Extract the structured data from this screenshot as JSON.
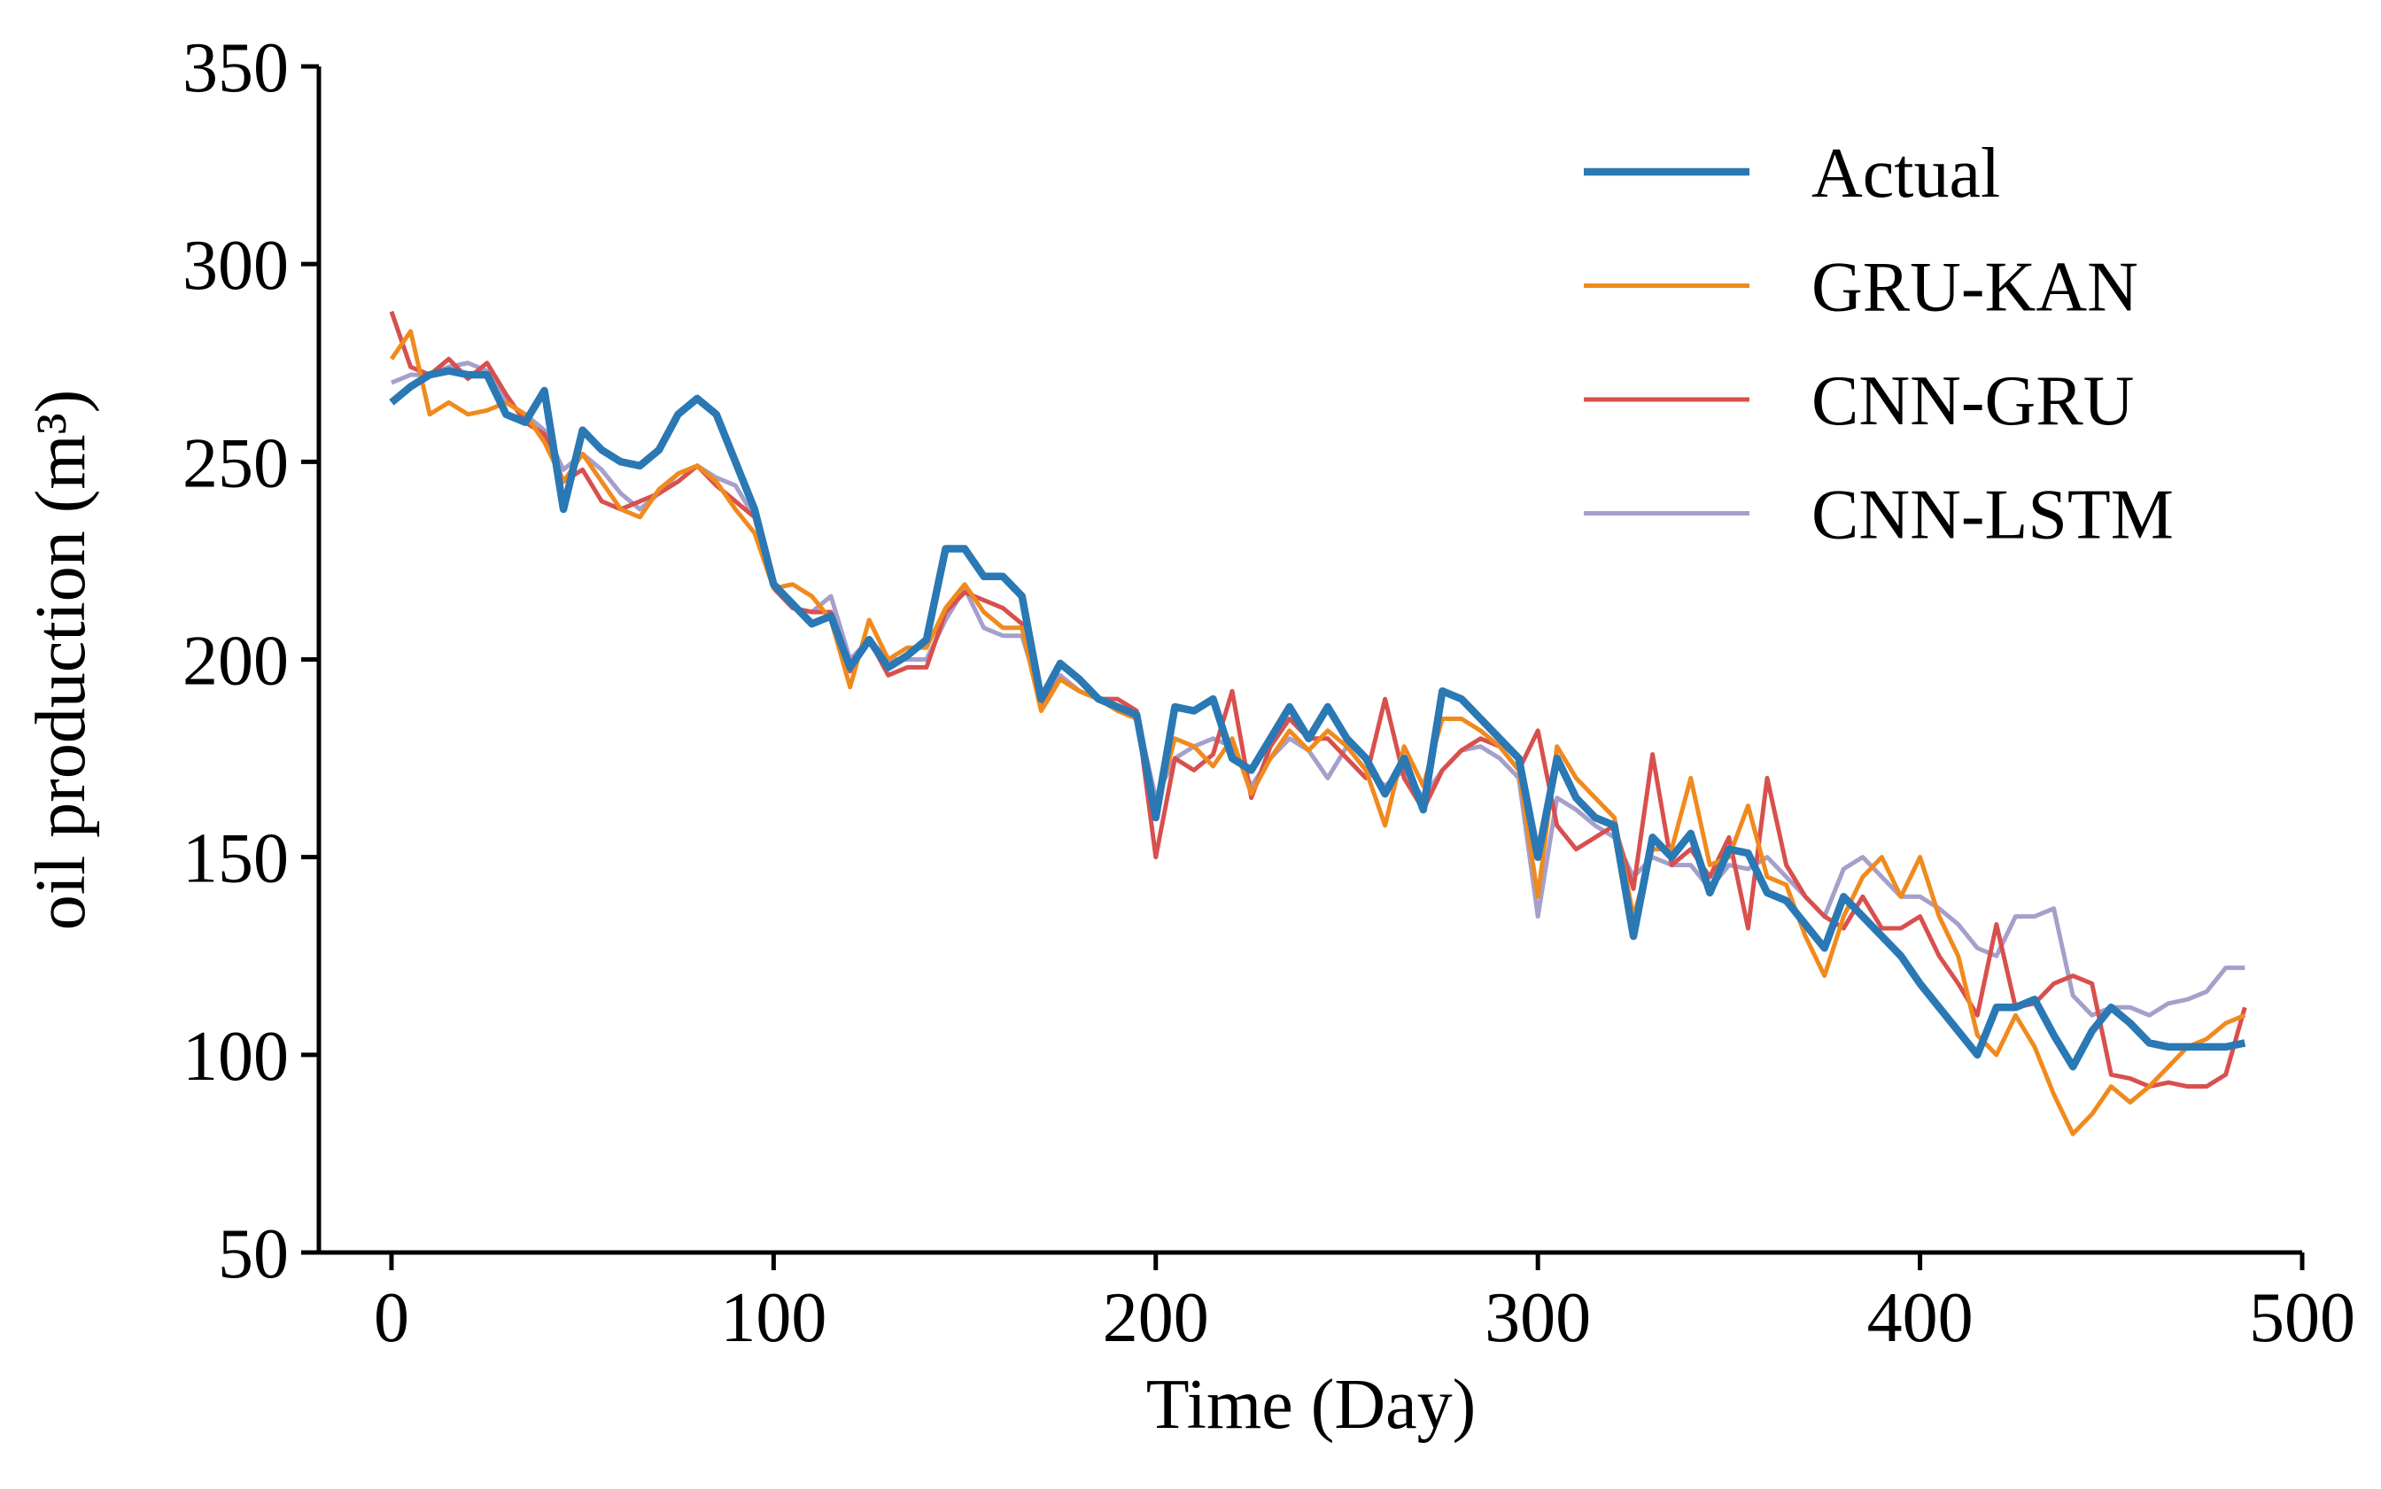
{
  "chart_data": {
    "type": "line",
    "xlabel": "Time (Day)",
    "ylabel": "oil production (m³)",
    "x": [
      0,
      5,
      10,
      15,
      20,
      25,
      30,
      35,
      40,
      45,
      50,
      55,
      60,
      65,
      70,
      75,
      80,
      85,
      90,
      95,
      100,
      105,
      110,
      115,
      120,
      125,
      130,
      135,
      140,
      145,
      150,
      155,
      160,
      165,
      170,
      175,
      180,
      185,
      190,
      195,
      200,
      205,
      210,
      215,
      220,
      225,
      230,
      235,
      240,
      245,
      250,
      255,
      260,
      265,
      270,
      275,
      280,
      285,
      290,
      295,
      300,
      305,
      310,
      315,
      320,
      325,
      330,
      335,
      340,
      345,
      350,
      355,
      360,
      365,
      370,
      375,
      380,
      385,
      390,
      395,
      400,
      405,
      410,
      415,
      420,
      425,
      430,
      435,
      440,
      445,
      450,
      455,
      460,
      465,
      470,
      475,
      480,
      485
    ],
    "series": [
      {
        "name": "Actual",
        "color": "#2a78b4",
        "values": [
          265,
          269,
          272,
          273,
          272,
          272,
          262,
          260,
          268,
          238,
          258,
          253,
          250,
          249,
          253,
          262,
          266,
          262,
          250,
          238,
          219,
          214,
          209,
          211,
          198,
          205,
          198,
          201,
          205,
          228,
          228,
          221,
          221,
          216,
          190,
          199,
          195,
          190,
          188,
          186,
          160,
          188,
          187,
          190,
          175,
          172,
          180,
          188,
          180,
          188,
          180,
          175,
          166,
          175,
          162,
          192,
          190,
          185,
          180,
          175,
          150,
          175,
          165,
          160,
          158,
          130,
          155,
          150,
          156,
          141,
          152,
          151,
          141,
          139,
          133,
          127,
          140,
          135,
          130,
          125,
          118,
          112,
          106,
          100,
          112,
          112,
          114,
          105,
          97,
          106,
          112,
          108,
          103,
          102,
          102,
          102,
          102,
          103
        ]
      },
      {
        "name": "GRU-KAN",
        "color": "#f08a1e",
        "values": [
          276,
          283,
          262,
          265,
          262,
          263,
          265,
          262,
          255,
          245,
          252,
          245,
          238,
          236,
          243,
          247,
          249,
          245,
          238,
          232,
          218,
          219,
          216,
          210,
          193,
          210,
          200,
          203,
          203,
          213,
          219,
          212,
          208,
          208,
          187,
          195,
          192,
          190,
          187,
          185,
          162,
          180,
          178,
          173,
          180,
          166,
          175,
          182,
          177,
          182,
          178,
          172,
          158,
          178,
          168,
          185,
          185,
          182,
          178,
          172,
          140,
          178,
          170,
          165,
          160,
          135,
          152,
          152,
          170,
          148,
          150,
          163,
          145,
          143,
          130,
          120,
          135,
          145,
          150,
          140,
          150,
          135,
          125,
          105,
          100,
          110,
          102,
          90,
          80,
          85,
          92,
          88,
          92,
          97,
          102,
          104,
          108,
          110
        ]
      },
      {
        "name": "CNN-GRU",
        "color": "#d8504e",
        "values": [
          288,
          274,
          272,
          276,
          271,
          275,
          267,
          260,
          257,
          245,
          248,
          240,
          238,
          240,
          242,
          245,
          249,
          244,
          240,
          236,
          218,
          213,
          212,
          212,
          197,
          205,
          196,
          198,
          198,
          212,
          217,
          215,
          213,
          209,
          188,
          195,
          192,
          190,
          190,
          187,
          150,
          175,
          172,
          176,
          192,
          165,
          178,
          185,
          180,
          180,
          175,
          170,
          190,
          170,
          162,
          172,
          177,
          180,
          178,
          172,
          182,
          158,
          152,
          155,
          158,
          142,
          176,
          148,
          152,
          145,
          155,
          132,
          170,
          148,
          140,
          135,
          132,
          140,
          132,
          132,
          135,
          125,
          118,
          110,
          133,
          112,
          113,
          118,
          120,
          118,
          95,
          94,
          92,
          93,
          92,
          92,
          95,
          112
        ]
      },
      {
        "name": "CNN-LSTM",
        "color": "#a59fcb",
        "values": [
          270,
          272,
          272,
          274,
          275,
          273,
          265,
          262,
          258,
          248,
          252,
          248,
          242,
          238,
          242,
          247,
          249,
          246,
          244,
          236,
          219,
          213,
          212,
          216,
          200,
          205,
          200,
          200,
          200,
          210,
          218,
          208,
          206,
          206,
          190,
          196,
          192,
          190,
          188,
          186,
          165,
          175,
          178,
          180,
          178,
          168,
          175,
          180,
          177,
          170,
          178,
          172,
          168,
          172,
          165,
          172,
          177,
          178,
          175,
          170,
          135,
          165,
          162,
          158,
          155,
          145,
          150,
          148,
          148,
          142,
          148,
          147,
          150,
          145,
          140,
          135,
          147,
          150,
          145,
          140,
          140,
          137,
          133,
          127,
          125,
          135,
          135,
          137,
          115,
          110,
          112,
          112,
          110,
          113,
          114,
          116,
          122,
          122
        ]
      }
    ],
    "xlim": [
      -19,
      500
    ],
    "xticks": [
      0,
      100,
      200,
      300,
      400,
      500
    ],
    "ylim": [
      50,
      350
    ],
    "yticks": [
      50,
      100,
      150,
      200,
      250,
      300,
      350
    ],
    "legend": "upper right"
  }
}
